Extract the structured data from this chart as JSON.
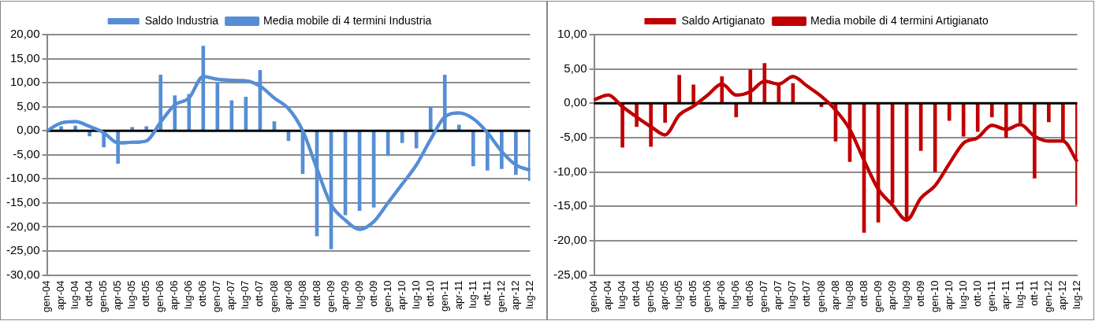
{
  "chart_data": [
    {
      "type": "bar",
      "categories": [
        "gen-04",
        "apr-04",
        "lug-04",
        "ott-04",
        "gen-05",
        "apr-05",
        "lug-05",
        "ott-05",
        "gen-06",
        "apr-06",
        "lug-06",
        "ott-06",
        "gen-07",
        "apr-07",
        "lug-07",
        "ott-07",
        "gen-08",
        "apr-08",
        "lug-08",
        "ott-08",
        "gen-09",
        "apr-09",
        "lug-09",
        "ott-09",
        "gen-10",
        "apr-10",
        "lug-10",
        "ott-10",
        "gen-11",
        "apr-11",
        "lug-11",
        "ott-11",
        "gen-12",
        "apr-12",
        "lug-12"
      ],
      "series": [
        {
          "name": "Saldo Industria",
          "color": "#558ed5",
          "values": [
            null,
            0.9,
            1.0,
            -1.1,
            -3.4,
            -6.8,
            0.7,
            0.9,
            11.6,
            7.3,
            7.6,
            17.6,
            10.0,
            6.3,
            7.0,
            12.6,
            1.9,
            -2.1,
            -8.9,
            -21.9,
            -24.6,
            -17.5,
            -16.6,
            -15.9,
            -5.2,
            -2.5,
            -3.6,
            5.0,
            11.6,
            1.2,
            -7.3,
            -8.2,
            -7.9,
            -9.1,
            -10.4
          ]
        },
        {
          "name": "Media mobile di 4 termini Industria",
          "type": "line",
          "color": "#558ed5",
          "values": [
            0.0,
            1.6,
            1.9,
            0.9,
            -0.4,
            -2.5,
            -2.4,
            -2.1,
            1.8,
            5.4,
            6.8,
            11.3,
            10.7,
            10.5,
            10.4,
            9.3,
            6.8,
            4.6,
            0.0,
            -7.9,
            -15.4,
            -18.6,
            -20.5,
            -18.9,
            -15.0,
            -11.1,
            -7.1,
            -1.8,
            2.9,
            3.7,
            2.5,
            -0.4,
            -4.3,
            -7.1,
            -8.2
          ]
        }
      ],
      "ylim": [
        -30,
        20
      ],
      "yticks": [
        {
          "value": -30,
          "label": "-30,00"
        },
        {
          "value": -25,
          "label": "-25,00"
        },
        {
          "value": -20,
          "label": "-20,00"
        },
        {
          "value": -15,
          "label": "-15,00"
        },
        {
          "value": -10,
          "label": "-10,00"
        },
        {
          "value": -5,
          "label": "-5,00"
        },
        {
          "value": 0,
          "label": "0,00"
        },
        {
          "value": 5,
          "label": "5,00"
        },
        {
          "value": 10,
          "label": "10,00"
        },
        {
          "value": 15,
          "label": "15,00"
        },
        {
          "value": 20,
          "label": "20,00"
        }
      ],
      "ref_lines": [
        {
          "axis": "y",
          "value": 0,
          "color": "#000000"
        }
      ],
      "grid": "y",
      "legend": "top",
      "marker": "none"
    },
    {
      "type": "bar",
      "categories": [
        "gen-04",
        "apr-04",
        "lug-04",
        "ott-04",
        "gen-05",
        "apr-05",
        "lug-05",
        "ott-05",
        "gen-06",
        "apr-06",
        "lug-06",
        "ott-06",
        "gen-07",
        "apr-07",
        "lug-07",
        "ott-07",
        "gen-08",
        "apr-08",
        "lug-08",
        "ott-08",
        "gen-09",
        "apr-09",
        "lug-09",
        "ott-09",
        "gen-10",
        "apr-10",
        "lug-10",
        "ott-10",
        "gen-11",
        "apr-11",
        "lug-11",
        "ott-11",
        "gen-12",
        "apr-12",
        "lug-12"
      ],
      "series": [
        {
          "name": "Saldo Artigianato",
          "color": "#c00000",
          "values": [
            null,
            null,
            -6.4,
            -3.4,
            -6.3,
            -2.8,
            4.1,
            2.7,
            null,
            3.9,
            -2.0,
            4.9,
            5.8,
            2.8,
            2.9,
            null,
            -0.5,
            -5.5,
            -8.5,
            -18.8,
            -17.3,
            -14.5,
            -17.0,
            -6.9,
            -10.0,
            -2.5,
            -4.8,
            -4.1,
            -2.0,
            -5.0,
            -2.8,
            -10.9,
            -2.7,
            -5.3,
            -14.8
          ]
        },
        {
          "name": "Media mobile di 4 termini Artigianato",
          "type": "line",
          "color": "#c00000",
          "values": [
            0.5,
            1.2,
            -0.5,
            -2.0,
            -3.4,
            -4.6,
            -1.7,
            -0.4,
            1.2,
            2.8,
            1.2,
            1.7,
            3.2,
            2.8,
            3.9,
            2.5,
            1.0,
            -1.0,
            -3.8,
            -8.3,
            -12.5,
            -14.8,
            -17.0,
            -13.8,
            -12.0,
            -8.8,
            -5.8,
            -5.0,
            -3.2,
            -3.8,
            -3.1,
            -4.8,
            -5.5,
            -5.5,
            -8.5
          ]
        }
      ],
      "ylim": [
        -25,
        10
      ],
      "yticks": [
        {
          "value": -25,
          "label": "-25,00"
        },
        {
          "value": -20,
          "label": "-20,00"
        },
        {
          "value": -15,
          "label": "-15,00"
        },
        {
          "value": -10,
          "label": "-10,00"
        },
        {
          "value": -5,
          "label": "-5,00"
        },
        {
          "value": 0,
          "label": "0,00"
        },
        {
          "value": 5,
          "label": "5,00"
        },
        {
          "value": 10,
          "label": "10,00"
        }
      ],
      "ref_lines": [
        {
          "axis": "y",
          "value": 0,
          "color": "#000000"
        }
      ],
      "grid": "y",
      "legend": "top",
      "marker": "none"
    }
  ]
}
